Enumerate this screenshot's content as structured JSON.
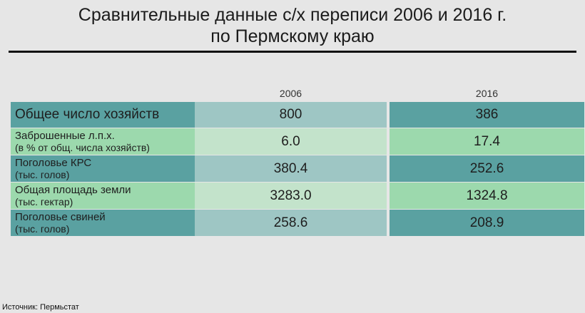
{
  "title": {
    "line1": "Сравнительные данные с/х переписи 2006 и 2016 г.",
    "line2": "по Пермскому краю"
  },
  "chart_data": {
    "type": "table",
    "columns": [
      "2006",
      "2016"
    ],
    "rows": [
      {
        "label_line1": "Общее число хозяйств",
        "label_line2": "",
        "values": [
          "800",
          "386"
        ]
      },
      {
        "label_line1": "Заброшенные л.п.х.",
        "label_line2": "(в % от общ. числа хозяйств)",
        "values": [
          "6.0",
          "17.4"
        ]
      },
      {
        "label_line1": "Поголовье КРС",
        "label_line2": "(тыс. голов)",
        "values": [
          "380.4",
          "252.6"
        ]
      },
      {
        "label_line1": "Общая площадь земли",
        "label_line2": "(тыс. гектар)",
        "values": [
          "3283.0",
          "1324.8"
        ]
      },
      {
        "label_line1": "Поголовье свиней",
        "label_line2": "(тыс. голов)",
        "values": [
          "258.6",
          "208.9"
        ]
      }
    ]
  },
  "source": "Источник: Пермьстат",
  "colors": {
    "row_dark": "#5aa1a1",
    "row_dark_mid": "#9ec6c4",
    "row_light": "#9cd9ad",
    "row_light_mid": "#c3e3cb",
    "background": "#e6e6e6"
  }
}
